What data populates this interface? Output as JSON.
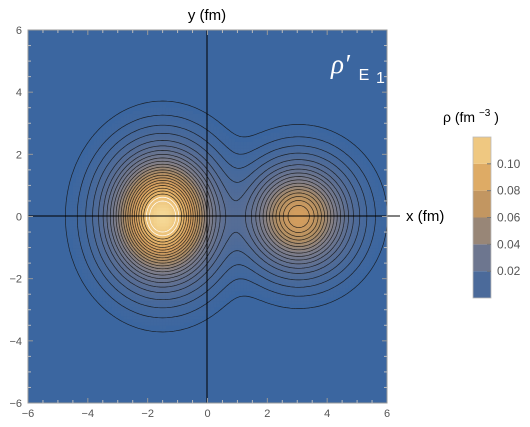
{
  "chart_data": {
    "type": "heatmap",
    "subtype": "density contour plot",
    "xlabel": "x (fm)",
    "ylabel": "y (fm)",
    "xlim": [
      -6,
      6
    ],
    "ylim": [
      -6,
      6
    ],
    "x_ticks": [
      -6,
      -4,
      -2,
      0,
      2,
      4,
      6
    ],
    "y_ticks": [
      -6,
      -4,
      -2,
      0,
      2,
      4,
      6
    ],
    "x_tick_labels": [
      "−6",
      "−4",
      "−2",
      "0",
      "2",
      "4",
      "6"
    ],
    "y_tick_labels": [
      "−6",
      "−4",
      "−2",
      "0",
      "2",
      "4",
      "6"
    ],
    "panel_label": {
      "symbol": "ρ′",
      "subscript_letter": "E",
      "subscript_index": "1"
    },
    "colorbar": {
      "title_prefix": "ρ (fm",
      "title_exponent": "−3",
      "title_suffix": ")",
      "ticks": [
        0.02,
        0.04,
        0.06,
        0.08,
        0.1
      ],
      "tick_labels": [
        "0.02",
        "0.04",
        "0.06",
        "0.08",
        "0.10"
      ],
      "range": [
        0,
        0.12
      ],
      "colors": [
        "#3b66a0",
        "#5a6e94",
        "#7f7e8a",
        "#b08e64",
        "#d49e5e",
        "#e7b76c",
        "#f6d996"
      ]
    },
    "density_components": [
      {
        "center": [
          -1.5,
          0.0
        ],
        "peak": 0.12,
        "sigma_x": 1.05,
        "sigma_y": 1.2
      },
      {
        "center": [
          3.05,
          0.0
        ],
        "peak": 0.08,
        "sigma_x": 1.0,
        "sigma_y": 1.0
      }
    ],
    "contour_levels": [
      0.001,
      0.003,
      0.006,
      0.01,
      0.015,
      0.02,
      0.025,
      0.03,
      0.035,
      0.04,
      0.045,
      0.05,
      0.055,
      0.06,
      0.065,
      0.07,
      0.075,
      0.08,
      0.085,
      0.09,
      0.095,
      0.1,
      0.105,
      0.11
    ],
    "grid": false,
    "legend_position": "right",
    "colors": {
      "background": "#3b66a0",
      "axis_lines": "#000000",
      "frame": "#999999"
    }
  }
}
